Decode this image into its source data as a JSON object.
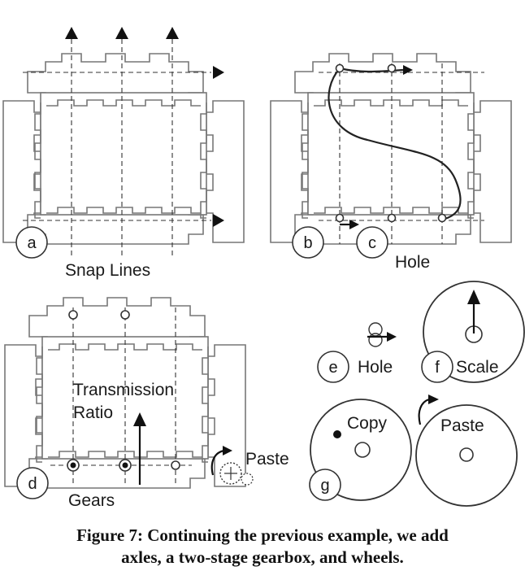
{
  "panels": {
    "a": {
      "badge": "a",
      "label": "Snap Lines"
    },
    "b": {
      "badge": "b"
    },
    "c": {
      "badge": "c",
      "label": "Hole"
    },
    "d": {
      "badge": "d",
      "label": "Gears",
      "annotation_line1": "Transmission",
      "annotation_line2": "Ratio",
      "paste_label": "Paste"
    },
    "e": {
      "badge": "e",
      "label": "Hole"
    },
    "f": {
      "badge": "f",
      "label": "Scale"
    },
    "g": {
      "badge": "g",
      "copy_label": "Copy",
      "paste_label": "Paste"
    }
  },
  "caption": {
    "line1": "Figure 7: Continuing the previous example, we add",
    "line2": "axles, a two-stage gearbox, and wheels."
  }
}
